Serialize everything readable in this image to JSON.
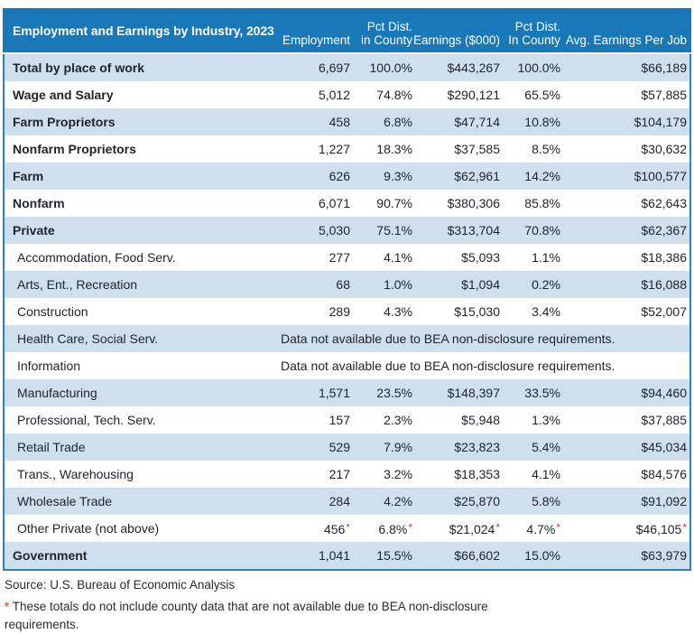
{
  "colors": {
    "header_blue": "#1878b8",
    "row_light_blue": "#cfdfed",
    "border_blue": "#2b83bb",
    "asterisk_red": "#dd3b2e",
    "text_dark": "#20252e"
  },
  "chart_data": {
    "type": "table",
    "title": "Employment and Earnings by Industry, 2023",
    "columns": [
      {
        "top": "",
        "bottom": "Employment"
      },
      {
        "top": "Pct Dist.",
        "bottom": "in County"
      },
      {
        "top": "",
        "bottom": "Earnings ($000)"
      },
      {
        "top": "Pct Dist.",
        "bottom": "In County"
      },
      {
        "top": "",
        "bottom": "Avg. Earnings Per Job"
      }
    ],
    "na_text": "Data not available due to BEA non-disclosure requirements.",
    "rows": [
      {
        "label": "Total by place of work",
        "bold": true,
        "indent": false,
        "na": false,
        "asterisk": false,
        "values": [
          "6,697",
          "100.0%",
          "$443,267",
          "100.0%",
          "$66,189"
        ]
      },
      {
        "label": "Wage and Salary",
        "bold": true,
        "indent": false,
        "na": false,
        "asterisk": false,
        "values": [
          "5,012",
          "74.8%",
          "$290,121",
          "65.5%",
          "$57,885"
        ]
      },
      {
        "label": "Farm Proprietors",
        "bold": true,
        "indent": false,
        "na": false,
        "asterisk": false,
        "values": [
          "458",
          "6.8%",
          "$47,714",
          "10.8%",
          "$104,179"
        ]
      },
      {
        "label": "Nonfarm Proprietors",
        "bold": true,
        "indent": false,
        "na": false,
        "asterisk": false,
        "values": [
          "1,227",
          "18.3%",
          "$37,585",
          "8.5%",
          "$30,632"
        ]
      },
      {
        "label": "Farm",
        "bold": true,
        "indent": false,
        "na": false,
        "asterisk": false,
        "values": [
          "626",
          "9.3%",
          "$62,961",
          "14.2%",
          "$100,577"
        ]
      },
      {
        "label": "Nonfarm",
        "bold": true,
        "indent": false,
        "na": false,
        "asterisk": false,
        "values": [
          "6,071",
          "90.7%",
          "$380,306",
          "85.8%",
          "$62,643"
        ]
      },
      {
        "label": "Private",
        "bold": true,
        "indent": false,
        "na": false,
        "asterisk": false,
        "values": [
          "5,030",
          "75.1%",
          "$313,704",
          "70.8%",
          "$62,367"
        ]
      },
      {
        "label": "Accommodation, Food Serv.",
        "bold": false,
        "indent": true,
        "na": false,
        "asterisk": false,
        "values": [
          "277",
          "4.1%",
          "$5,093",
          "1.1%",
          "$18,386"
        ]
      },
      {
        "label": "Arts, Ent., Recreation",
        "bold": false,
        "indent": true,
        "na": false,
        "asterisk": false,
        "values": [
          "68",
          "1.0%",
          "$1,094",
          "0.2%",
          "$16,088"
        ]
      },
      {
        "label": "Construction",
        "bold": false,
        "indent": true,
        "na": false,
        "asterisk": false,
        "values": [
          "289",
          "4.3%",
          "$15,030",
          "3.4%",
          "$52,007"
        ]
      },
      {
        "label": "Health Care, Social Serv.",
        "bold": false,
        "indent": true,
        "na": true,
        "asterisk": false,
        "values": []
      },
      {
        "label": "Information",
        "bold": false,
        "indent": true,
        "na": true,
        "asterisk": false,
        "values": []
      },
      {
        "label": "Manufacturing",
        "bold": false,
        "indent": true,
        "na": false,
        "asterisk": false,
        "values": [
          "1,571",
          "23.5%",
          "$148,397",
          "33.5%",
          "$94,460"
        ]
      },
      {
        "label": "Professional, Tech. Serv.",
        "bold": false,
        "indent": true,
        "na": false,
        "asterisk": false,
        "values": [
          "157",
          "2.3%",
          "$5,948",
          "1.3%",
          "$37,885"
        ]
      },
      {
        "label": "Retail Trade",
        "bold": false,
        "indent": true,
        "na": false,
        "asterisk": false,
        "values": [
          "529",
          "7.9%",
          "$23,823",
          "5.4%",
          "$45,034"
        ]
      },
      {
        "label": "Trans., Warehousing",
        "bold": false,
        "indent": true,
        "na": false,
        "asterisk": false,
        "values": [
          "217",
          "3.2%",
          "$18,353",
          "4.1%",
          "$84,576"
        ]
      },
      {
        "label": "Wholesale Trade",
        "bold": false,
        "indent": true,
        "na": false,
        "asterisk": false,
        "values": [
          "284",
          "4.2%",
          "$25,870",
          "5.8%",
          "$91,092"
        ]
      },
      {
        "label": "Other Private (not above)",
        "bold": false,
        "indent": true,
        "na": false,
        "asterisk": true,
        "values": [
          "456",
          "6.8%",
          "$21,024",
          "4.7%",
          "$46,105"
        ]
      },
      {
        "label": "Government",
        "bold": true,
        "indent": false,
        "na": false,
        "asterisk": false,
        "values": [
          "1,041",
          "15.5%",
          "$66,602",
          "15.0%",
          "$63,979"
        ]
      }
    ],
    "source": "Source: U.S. Bureau of Economic Analysis",
    "footnote_marker": "*",
    "footnote_text": " These totals do not include county data that are not available due to BEA non-disclosure requirements."
  }
}
